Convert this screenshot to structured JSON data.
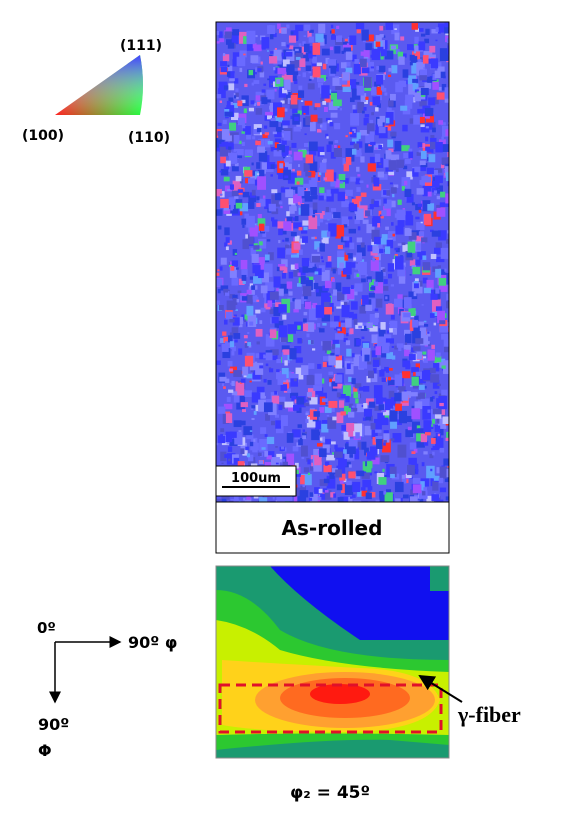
{
  "ipf_key": {
    "top": "(111)",
    "left": "(100)",
    "right": "(110)"
  },
  "micrograph": {
    "scale_bar": "100um",
    "caption": "As-rolled"
  },
  "odf": {
    "origin": "0º",
    "x_axis": "90º φ",
    "y_axis_angle": "90º",
    "y_axis_symbol": "Φ",
    "annotation": "γ-fiber",
    "section": "φ₂ = 45º"
  }
}
